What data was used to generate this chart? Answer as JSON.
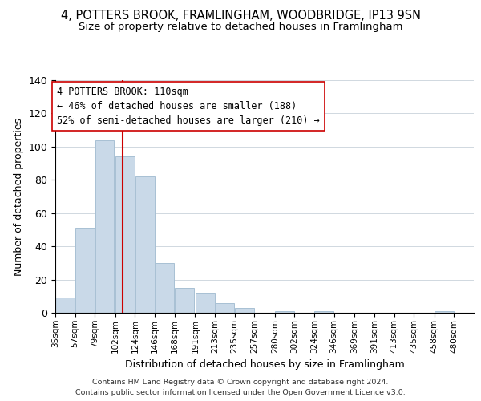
{
  "title": "4, POTTERS BROOK, FRAMLINGHAM, WOODBRIDGE, IP13 9SN",
  "subtitle": "Size of property relative to detached houses in Framlingham",
  "xlabel": "Distribution of detached houses by size in Framlingham",
  "ylabel": "Number of detached properties",
  "bar_left_edges": [
    35,
    57,
    79,
    102,
    124,
    146,
    168,
    191,
    213,
    235,
    257,
    280,
    302,
    324,
    346,
    369,
    391,
    413,
    435,
    458
  ],
  "bar_heights": [
    9,
    51,
    104,
    94,
    82,
    30,
    15,
    12,
    6,
    3,
    0,
    1,
    0,
    1,
    0,
    0,
    0,
    0,
    0,
    1
  ],
  "bar_widths": [
    22,
    22,
    22,
    22,
    22,
    22,
    22,
    22,
    22,
    22,
    22,
    22,
    22,
    22,
    22,
    22,
    22,
    22,
    22,
    22
  ],
  "bar_color": "#c9d9e8",
  "bar_edgecolor": "#a8c0d4",
  "property_line_x": 110,
  "property_line_color": "#cc0000",
  "ylim": [
    0,
    140
  ],
  "yticks": [
    0,
    20,
    40,
    60,
    80,
    100,
    120,
    140
  ],
  "xtick_labels": [
    "35sqm",
    "57sqm",
    "79sqm",
    "102sqm",
    "124sqm",
    "146sqm",
    "168sqm",
    "191sqm",
    "213sqm",
    "235sqm",
    "257sqm",
    "280sqm",
    "302sqm",
    "324sqm",
    "346sqm",
    "369sqm",
    "391sqm",
    "413sqm",
    "435sqm",
    "458sqm",
    "480sqm"
  ],
  "annotation_line1": "4 POTTERS BROOK: 110sqm",
  "annotation_line2": "← 46% of detached houses are smaller (188)",
  "annotation_line3": "52% of semi-detached houses are larger (210) →",
  "footer_line1": "Contains HM Land Registry data © Crown copyright and database right 2024.",
  "footer_line2": "Contains public sector information licensed under the Open Government Licence v3.0.",
  "background_color": "#ffffff",
  "title_fontsize": 10.5,
  "subtitle_fontsize": 9.5,
  "annotation_fontsize": 8.5,
  "xlabel_fontsize": 9,
  "ylabel_fontsize": 9
}
